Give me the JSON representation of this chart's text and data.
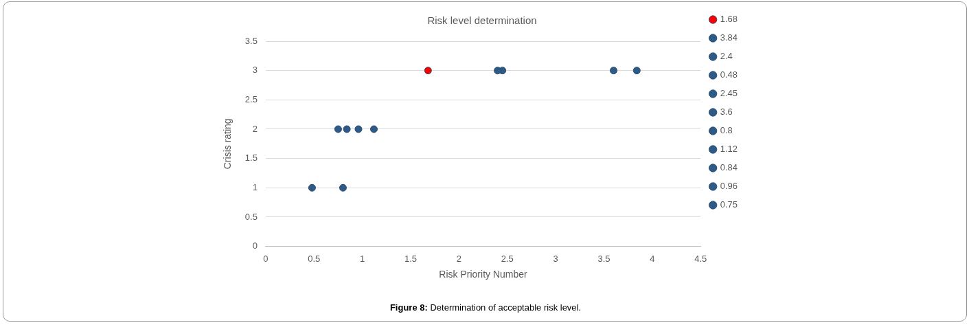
{
  "chart_data": {
    "type": "scatter",
    "title": "Risk level determination",
    "xlabel": "Risk Priority Number",
    "ylabel": "Crisis rating",
    "series": [
      {
        "name": "1.68",
        "color": "#ff0000",
        "x": [
          1.68
        ],
        "values": [
          3
        ]
      },
      {
        "name": "3.84",
        "color": "#2e5a87",
        "x": [
          3.84
        ],
        "values": [
          3
        ]
      },
      {
        "name": "2.4",
        "color": "#2e5a87",
        "x": [
          2.4
        ],
        "values": [
          3
        ]
      },
      {
        "name": "0.48",
        "color": "#2e5a87",
        "x": [
          0.48
        ],
        "values": [
          1
        ]
      },
      {
        "name": "2.45",
        "color": "#2e5a87",
        "x": [
          2.45
        ],
        "values": [
          3
        ]
      },
      {
        "name": "3.6",
        "color": "#2e5a87",
        "x": [
          3.6
        ],
        "values": [
          3
        ]
      },
      {
        "name": "0.8",
        "color": "#2e5a87",
        "x": [
          0.8
        ],
        "values": [
          1
        ]
      },
      {
        "name": "1.12",
        "color": "#2e5a87",
        "x": [
          1.12
        ],
        "values": [
          2
        ]
      },
      {
        "name": "0.84",
        "color": "#2e5a87",
        "x": [
          0.84
        ],
        "values": [
          2
        ]
      },
      {
        "name": "0.96",
        "color": "#2e5a87",
        "x": [
          0.96
        ],
        "values": [
          2
        ]
      },
      {
        "name": "0.75",
        "color": "#2e5a87",
        "x": [
          0.75
        ],
        "values": [
          2
        ]
      }
    ],
    "xlim": [
      0,
      4.5
    ],
    "xticks": [
      0,
      0.5,
      1,
      1.5,
      2,
      2.5,
      3,
      3.5,
      4,
      4.5
    ],
    "ylim": [
      0,
      3.5
    ],
    "yticks": [
      0,
      0.5,
      1,
      1.5,
      2,
      2.5,
      3,
      3.5
    ],
    "grid": "y",
    "legend": "right",
    "marker": "circle",
    "annotations": [
      "Figure 8: Determination of acceptable risk level."
    ]
  }
}
